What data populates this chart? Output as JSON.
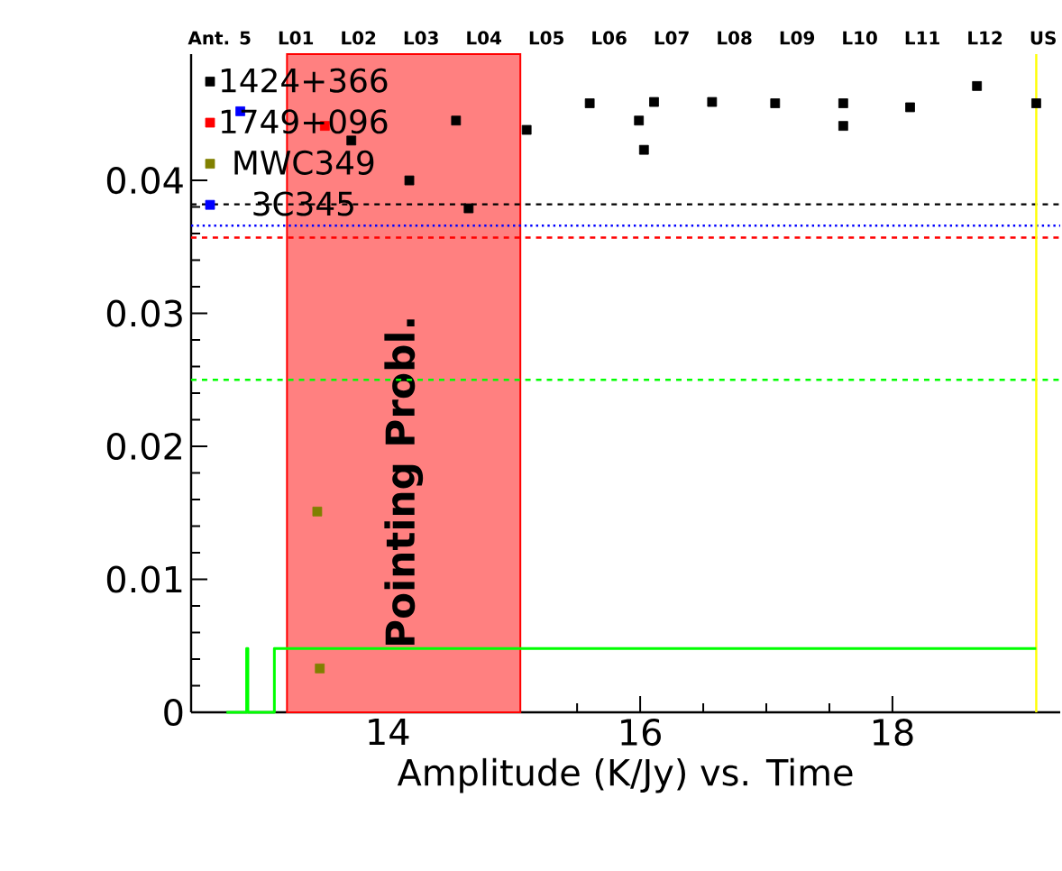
{
  "chart_data": {
    "type": "scatter",
    "xlabel": "Amplitude (K/Jy)   vs.   Time",
    "xlim": [
      12.44,
      19.33
    ],
    "xticks": [
      14,
      16,
      18
    ],
    "ylim": [
      0,
      0.0495
    ],
    "yticks": [
      0,
      0.01,
      0.02,
      0.03,
      0.04
    ],
    "annotations": [
      "Ant. 5",
      "L01",
      "L02",
      "L03",
      "L04",
      "L05",
      "L06",
      "L07",
      "L08",
      "L09",
      "L10",
      "L11",
      "L12",
      "US"
    ],
    "marker": "square",
    "legend": "top left",
    "grid": false,
    "series": [
      {
        "name": "1424+366",
        "color": "#000000",
        "x": [
          13.71,
          14.17,
          14.54,
          14.64,
          15.1,
          15.6,
          15.99,
          16.03,
          16.11,
          16.57,
          17.07,
          17.61,
          17.61,
          18.14,
          18.67,
          19.14
        ],
        "values": [
          0.043,
          0.04,
          0.0445,
          0.0379,
          0.0438,
          0.0458,
          0.0445,
          0.0423,
          0.0459,
          0.0459,
          0.0458,
          0.0458,
          0.0441,
          0.0455,
          0.0471,
          0.0458
        ]
      },
      {
        "name": "1749+096",
        "color": "#ff0000",
        "x": [
          13.5
        ],
        "values": [
          0.0441
        ]
      },
      {
        "name": "MWC349",
        "color": "#808000",
        "x": [
          13.44,
          13.46
        ],
        "values": [
          0.0151,
          0.0033
        ]
      },
      {
        "name": "3C345",
        "color": "#0000ff",
        "x": [
          12.83
        ],
        "values": [
          0.0452
        ]
      },
      {
        "type": "line",
        "marker": "none",
        "color": "#00ff00",
        "x": [
          12.72,
          12.88,
          12.88,
          12.89,
          12.89,
          13.1,
          13.1,
          19.14
        ],
        "values": [
          0,
          0,
          0.0048,
          0.0048,
          0,
          0,
          0.0048,
          0.0048
        ]
      }
    ],
    "ref_lines": [
      {
        "axis": "y",
        "value": 0.0382,
        "color": "#000000",
        "line_style": "dashed"
      },
      {
        "axis": "y",
        "value": 0.0366,
        "color": "#0000ff",
        "line_style": "dotted"
      },
      {
        "axis": "y",
        "value": 0.0357,
        "color": "#ff0000",
        "line_style": "dashed"
      },
      {
        "axis": "y",
        "value": 0.025,
        "color": "#00ff00",
        "line_style": "dashed"
      },
      {
        "axis": "x",
        "value": 19.14,
        "color": "#ffff00",
        "line_style": "solid"
      }
    ],
    "bands": [
      {
        "axis": "x",
        "from": 13.2,
        "to": 15.05,
        "label": "Pointing Probl.",
        "color": "#ff8080"
      }
    ]
  }
}
